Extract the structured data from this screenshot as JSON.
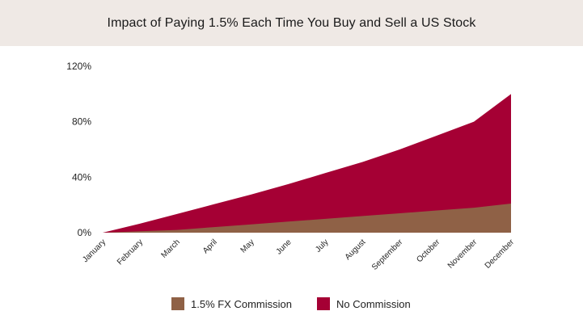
{
  "title": "Impact of Paying 1.5% Each Time You Buy and Sell a US Stock",
  "chart_data": {
    "type": "area",
    "title": "Impact of Paying 1.5% Each Time You Buy and Sell a US Stock",
    "categories": [
      "January",
      "February",
      "March",
      "April",
      "May",
      "June",
      "July",
      "August",
      "September",
      "October",
      "November",
      "December"
    ],
    "y_ticks": [
      "0%",
      "40%",
      "80%",
      "120%"
    ],
    "ylim": [
      0,
      120
    ],
    "grid": false,
    "legend_position": "bottom",
    "series": [
      {
        "name": "No Commission",
        "color": "#a50034",
        "values": [
          0,
          6.5,
          13.5,
          20.5,
          27.5,
          35,
          43,
          51,
          60,
          70,
          80,
          100
        ]
      },
      {
        "name": "1.5% FX Commission",
        "color": "#8f6146",
        "values": [
          0,
          1,
          2,
          4,
          6,
          8,
          10,
          12,
          14,
          16,
          18,
          21
        ]
      }
    ]
  }
}
